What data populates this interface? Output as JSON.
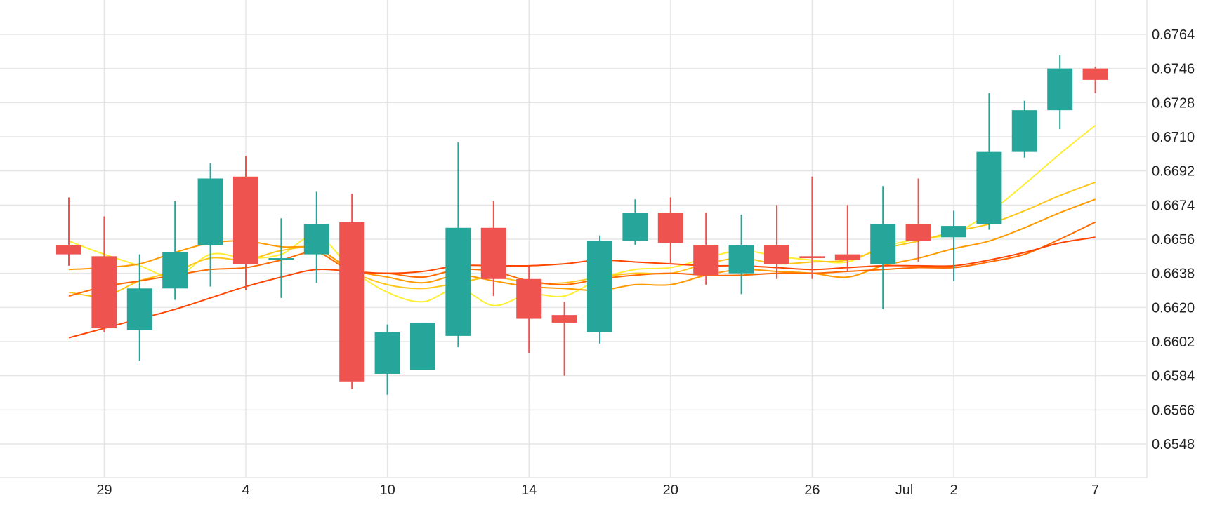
{
  "chart_data": {
    "type": "candlestick",
    "title": "",
    "xlabel": "",
    "ylabel": "",
    "ylim": [
      0.653,
      0.6782
    ],
    "y_ticks": [
      "0.6548",
      "0.6566",
      "0.6584",
      "0.6602",
      "0.6620",
      "0.6638",
      "0.6656",
      "0.6674",
      "0.6692",
      "0.6710",
      "0.6728",
      "0.6746",
      "0.6764"
    ],
    "x_ticks": [
      {
        "label": "29",
        "bar": 1
      },
      {
        "label": "4",
        "bar": 5
      },
      {
        "label": "10",
        "bar": 9
      },
      {
        "label": "14",
        "bar": 13
      },
      {
        "label": "20",
        "bar": 17
      },
      {
        "label": "26",
        "bar": 21
      },
      {
        "label": "Jul",
        "bar": 24
      },
      {
        "label": "2",
        "bar": 25
      },
      {
        "label": "7",
        "bar": 29
      }
    ],
    "grid": true,
    "colors": {
      "up": "#26a69a",
      "down": "#ef5350",
      "grid": "#e6e6e6",
      "ma_lines": [
        "#ffee33",
        "#ffc61a",
        "#ff9900",
        "#ff6a00",
        "#ff4500"
      ]
    },
    "candles": [
      {
        "open": 0.6653,
        "high": 0.6678,
        "low": 0.6642,
        "close": 0.6648
      },
      {
        "open": 0.6647,
        "high": 0.6668,
        "low": 0.6607,
        "close": 0.6609
      },
      {
        "open": 0.6608,
        "high": 0.6648,
        "low": 0.6592,
        "close": 0.663
      },
      {
        "open": 0.663,
        "high": 0.6676,
        "low": 0.6624,
        "close": 0.6649
      },
      {
        "open": 0.6653,
        "high": 0.6696,
        "low": 0.6631,
        "close": 0.6688
      },
      {
        "open": 0.6689,
        "high": 0.67,
        "low": 0.6629,
        "close": 0.6643
      },
      {
        "open": 0.6646,
        "high": 0.6667,
        "low": 0.6625,
        "close": 0.6646
      },
      {
        "open": 0.6648,
        "high": 0.6681,
        "low": 0.6633,
        "close": 0.6664
      },
      {
        "open": 0.6665,
        "high": 0.668,
        "low": 0.6577,
        "close": 0.6581
      },
      {
        "open": 0.6585,
        "high": 0.6611,
        "low": 0.6574,
        "close": 0.6607
      },
      {
        "open": 0.6587,
        "high": 0.6612,
        "low": 0.6587,
        "close": 0.6612
      },
      {
        "open": 0.6605,
        "high": 0.6707,
        "low": 0.6599,
        "close": 0.6662
      },
      {
        "open": 0.6662,
        "high": 0.6676,
        "low": 0.6626,
        "close": 0.6635
      },
      {
        "open": 0.6635,
        "high": 0.6642,
        "low": 0.6596,
        "close": 0.6614
      },
      {
        "open": 0.6616,
        "high": 0.6623,
        "low": 0.6584,
        "close": 0.6612
      },
      {
        "open": 0.6607,
        "high": 0.6658,
        "low": 0.6601,
        "close": 0.6655
      },
      {
        "open": 0.6655,
        "high": 0.6677,
        "low": 0.6653,
        "close": 0.667
      },
      {
        "open": 0.667,
        "high": 0.6678,
        "low": 0.6643,
        "close": 0.6654
      },
      {
        "open": 0.6653,
        "high": 0.667,
        "low": 0.6632,
        "close": 0.6637
      },
      {
        "open": 0.6638,
        "high": 0.6669,
        "low": 0.6627,
        "close": 0.6653
      },
      {
        "open": 0.6653,
        "high": 0.6674,
        "low": 0.6635,
        "close": 0.6643
      },
      {
        "open": 0.6647,
        "high": 0.6689,
        "low": 0.6635,
        "close": 0.6646
      },
      {
        "open": 0.6648,
        "high": 0.6674,
        "low": 0.6639,
        "close": 0.6645
      },
      {
        "open": 0.6643,
        "high": 0.6684,
        "low": 0.6619,
        "close": 0.6664
      },
      {
        "open": 0.6664,
        "high": 0.6688,
        "low": 0.6644,
        "close": 0.6655
      },
      {
        "open": 0.6657,
        "high": 0.6671,
        "low": 0.6634,
        "close": 0.6663
      },
      {
        "open": 0.6664,
        "high": 0.6733,
        "low": 0.6661,
        "close": 0.6702
      },
      {
        "open": 0.6702,
        "high": 0.6729,
        "low": 0.6699,
        "close": 0.6724
      },
      {
        "open": 0.6724,
        "high": 0.6753,
        "low": 0.6714,
        "close": 0.6746
      },
      {
        "open": 0.6746,
        "high": 0.6747,
        "low": 0.6733,
        "close": 0.674
      }
    ],
    "ma_series": [
      {
        "color": "#ffee33",
        "start": 0,
        "values": [
          0.6655,
          0.6648,
          0.6642,
          0.6636,
          0.6648,
          0.6646,
          0.6648,
          0.6658,
          0.664,
          0.6628,
          0.6623,
          0.663,
          0.6621,
          0.6627,
          0.6626,
          0.6635,
          0.664,
          0.6641,
          0.6646,
          0.665,
          0.6647,
          0.6645,
          0.6644,
          0.6652,
          0.6656,
          0.6659,
          0.667,
          0.6685,
          0.6701,
          0.6716
        ]
      },
      {
        "color": "#ffc61a",
        "start": 0,
        "values": [
          0.6628,
          0.6626,
          0.6634,
          0.6639,
          0.6646,
          0.6645,
          0.665,
          0.6651,
          0.6639,
          0.6632,
          0.663,
          0.6633,
          0.6636,
          0.6633,
          0.6633,
          0.6636,
          0.6638,
          0.6638,
          0.6643,
          0.6646,
          0.6643,
          0.6644,
          0.6645,
          0.6651,
          0.6655,
          0.666,
          0.6664,
          0.6671,
          0.6679,
          0.6686
        ]
      },
      {
        "color": "#ff9900",
        "start": 0,
        "values": [
          0.664,
          0.6641,
          0.6643,
          0.6649,
          0.6654,
          0.6655,
          0.6652,
          0.6651,
          0.664,
          0.6636,
          0.6633,
          0.6637,
          0.6634,
          0.6631,
          0.663,
          0.6629,
          0.6632,
          0.6632,
          0.6637,
          0.664,
          0.6639,
          0.6638,
          0.6636,
          0.6642,
          0.6646,
          0.6651,
          0.6655,
          0.6662,
          0.667,
          0.6677
        ]
      },
      {
        "color": "#ff6a00",
        "start": 0,
        "values": [
          0.6626,
          0.6631,
          0.6634,
          0.6637,
          0.664,
          0.6641,
          0.6645,
          0.6649,
          0.6639,
          0.6638,
          0.6636,
          0.664,
          0.6639,
          0.6634,
          0.6632,
          0.6635,
          0.6637,
          0.6638,
          0.6637,
          0.6637,
          0.6638,
          0.6638,
          0.6639,
          0.664,
          0.6641,
          0.6641,
          0.6644,
          0.6648,
          0.6656,
          0.6665
        ]
      },
      {
        "color": "#ff4500",
        "start": 0,
        "values": [
          0.6604,
          0.6609,
          0.6614,
          0.6619,
          0.6625,
          0.6631,
          0.6636,
          0.664,
          0.6639,
          0.6638,
          0.6639,
          0.6642,
          0.6642,
          0.6642,
          0.6643,
          0.6645,
          0.6644,
          0.6643,
          0.6642,
          0.6642,
          0.6641,
          0.664,
          0.6641,
          0.6642,
          0.6642,
          0.6642,
          0.6645,
          0.6649,
          0.6654,
          0.6657
        ]
      }
    ]
  }
}
